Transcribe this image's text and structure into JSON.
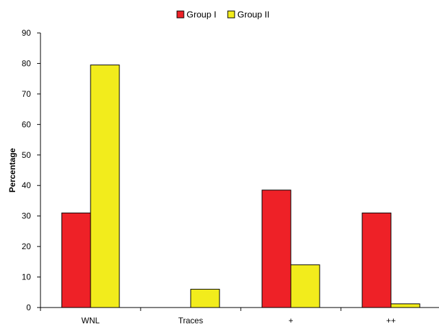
{
  "chart_data": {
    "type": "bar",
    "categories": [
      "WNL",
      "Traces",
      "+",
      "++"
    ],
    "series": [
      {
        "name": "Group I",
        "color": "#ee2127",
        "values": [
          31,
          0,
          38.5,
          31
        ]
      },
      {
        "name": "Group II",
        "color": "#f2ec1c",
        "values": [
          79.5,
          6,
          14,
          1.2
        ]
      }
    ],
    "xlabel": "",
    "ylabel": "Percentage",
    "ylim": [
      0,
      90
    ],
    "yticks": [
      0,
      10,
      20,
      30,
      40,
      50,
      60,
      70,
      80,
      90
    ],
    "grid": false,
    "legend_position": "top-center"
  }
}
